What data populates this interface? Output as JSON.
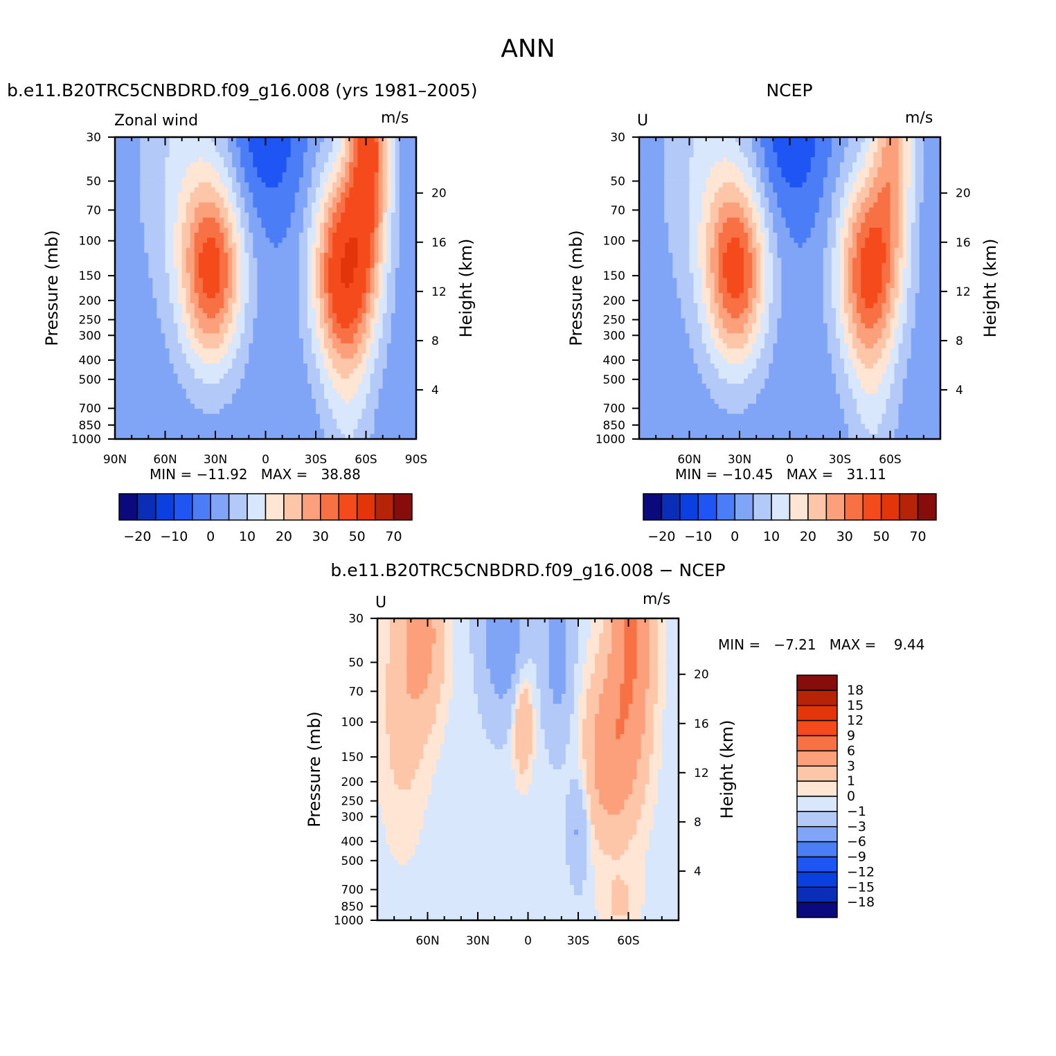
{
  "figure_title": "ANN",
  "panels": [
    {
      "subtitle": "b.e11.B20TRC5CNBDRD.f09_g16.008 (yrs 1981–2005)",
      "left_string": "Zonal wind",
      "right_string": "m/s",
      "y_label": "Pressure (mb)",
      "y2_label": "Height (km)",
      "x_ticks": [
        "90N",
        "60N",
        "30N",
        "0",
        "30S",
        "60S",
        "90S"
      ],
      "min_label": "MIN = ",
      "min": "−11.92",
      "max_label": "MAX = ",
      "max": "38.88"
    },
    {
      "subtitle": "NCEP",
      "left_string": "U",
      "right_string": "m/s",
      "y_label": "Pressure (mb)",
      "y2_label": "Height (km)",
      "x_ticks": [
        "60N",
        "30N",
        "0",
        "30S",
        "60S"
      ],
      "min_label": "MIN = ",
      "min": "−10.45",
      "max_label": "MAX = ",
      "max": "31.11"
    },
    {
      "subtitle": "b.e11.B20TRC5CNBDRD.f09_g16.008 − NCEP",
      "left_string": "U",
      "right_string": "m/s",
      "y_label": "Pressure (mb)",
      "y2_label": "Height (km)",
      "x_ticks": [
        "60N",
        "30N",
        "0",
        "30S",
        "60S"
      ],
      "min_label": "MIN = ",
      "min": "−7.21",
      "max_label": "MAX = ",
      "max": "9.44"
    }
  ],
  "pressure_ticks": [
    "30",
    "50",
    "70",
    "100",
    "150",
    "200",
    "250",
    "300",
    "400",
    "500",
    "700",
    "850",
    "1000"
  ],
  "height_ticks": [
    "20",
    "16",
    "12",
    "8",
    "4"
  ],
  "colorbar_abs": {
    "labels": [
      "−20",
      "−10",
      "0",
      "10",
      "20",
      "30",
      "50",
      "70"
    ],
    "colors": [
      "#0a0a7e",
      "#0b2eb8",
      "#0a3fe0",
      "#1f55f3",
      "#4a7df6",
      "#80a4f6",
      "#b3c9f8",
      "#d8e7fb",
      "#fee5d4",
      "#fdc6a8",
      "#fba07a",
      "#f87144",
      "#f54a1c",
      "#e3340a",
      "#b72306",
      "#870c0c"
    ]
  },
  "colorbar_diff": {
    "labels": [
      "18",
      "15",
      "12",
      "9",
      "6",
      "3",
      "1",
      "0",
      "−1",
      "−3",
      "−6",
      "−9",
      "−12",
      "−15",
      "−18"
    ],
    "colors": [
      "#870c0c",
      "#b72306",
      "#e3340a",
      "#f54a1c",
      "#f87144",
      "#fba07a",
      "#fdc6a8",
      "#fee5d4",
      "#d8e7fb",
      "#b3c9f8",
      "#80a4f6",
      "#4a7df6",
      "#1f55f3",
      "#0a3fe0",
      "#0b2eb8",
      "#0a0a7e"
    ]
  },
  "chart_data": [
    {
      "type": "heatmap",
      "title": "b.e11.B20TRC5CNBDRD.f09_g16.008 (yrs 1981–2005)",
      "variable": "Zonal wind",
      "units": "m/s",
      "xlabel": "",
      "ylabel": "Pressure (mb)",
      "y2label": "Height (km)",
      "xlim": [
        90,
        -90
      ],
      "ylim": [
        1000,
        30
      ],
      "y_scale": "log",
      "levels": [
        -25,
        -20,
        -15,
        -10,
        -5,
        0,
        5,
        10,
        15,
        20,
        25,
        30,
        40,
        50,
        60,
        70
      ],
      "min": -11.92,
      "max": 38.88,
      "features": [
        {
          "name": "northern subtropical jet max",
          "lat": 32,
          "pressure": 200,
          "value": 30
        },
        {
          "name": "southern subtropical jet max",
          "lat": -50,
          "pressure": 200,
          "value": 38.88
        },
        {
          "name": "southern stratospheric westerlies",
          "lat": -60,
          "pressure": 40,
          "value": 30
        },
        {
          "name": "tropical easterlies",
          "lat": 0,
          "pressure": 40,
          "value": -11.92
        }
      ]
    },
    {
      "type": "heatmap",
      "title": "NCEP",
      "variable": "U",
      "units": "m/s",
      "xlim": [
        90,
        -90
      ],
      "ylim": [
        1000,
        30
      ],
      "y_scale": "log",
      "levels": [
        -25,
        -20,
        -15,
        -10,
        -5,
        0,
        5,
        10,
        15,
        20,
        25,
        30,
        40,
        50,
        60,
        70
      ],
      "min": -10.45,
      "max": 31.11,
      "features": [
        {
          "name": "northern subtropical jet max",
          "lat": 32,
          "pressure": 200,
          "value": 30
        },
        {
          "name": "southern subtropical jet max",
          "lat": -45,
          "pressure": 200,
          "value": 31.11
        },
        {
          "name": "tropical easterlies",
          "lat": 0,
          "pressure": 40,
          "value": -10.45
        }
      ]
    },
    {
      "type": "heatmap",
      "title": "b.e11.B20TRC5CNBDRD.f09_g16.008 − NCEP",
      "variable": "U",
      "units": "m/s",
      "xlim": [
        90,
        -90
      ],
      "ylim": [
        1000,
        30
      ],
      "y_scale": "log",
      "levels": [
        -18,
        -15,
        -12,
        -9,
        -6,
        -3,
        -1,
        0,
        1,
        3,
        6,
        9,
        12,
        15,
        18
      ],
      "min": -7.21,
      "max": 9.44,
      "features": [
        {
          "name": "positive bias southern high latitudes",
          "lat": -65,
          "pressure": 40,
          "value": 9.44
        },
        {
          "name": "negative bias tropical stratosphere",
          "lat": 15,
          "pressure": 70,
          "value": -7.21
        }
      ]
    }
  ]
}
